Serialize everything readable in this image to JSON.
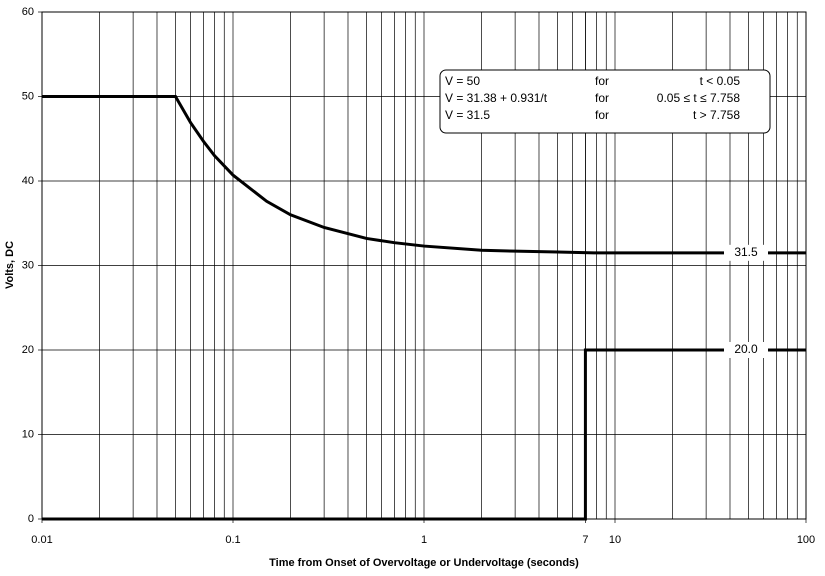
{
  "chart_data": {
    "type": "line",
    "x_label": "Time from Onset of Overvoltage or Undervoltage (seconds)",
    "y_label": "Volts, DC",
    "x_scale": "log",
    "xlim": [
      0.01,
      100
    ],
    "xticks": [
      0.01,
      0.1,
      1,
      7,
      10,
      100
    ],
    "xminorticks": [
      0.02,
      0.03,
      0.04,
      0.05,
      0.06,
      0.07,
      0.08,
      0.09,
      0.2,
      0.3,
      0.4,
      0.5,
      0.6,
      0.7,
      0.8,
      0.9,
      2,
      3,
      4,
      5,
      6,
      7,
      8,
      9,
      20,
      30,
      40,
      50,
      60,
      70,
      80,
      90
    ],
    "ylim": [
      0,
      60
    ],
    "yticks": [
      0,
      10,
      20,
      30,
      40,
      50,
      60
    ],
    "grid": true,
    "series": [
      {
        "color": "#000000",
        "x": [
          0.01,
          0.05,
          0.06,
          0.07,
          0.08,
          0.1,
          0.15,
          0.2,
          0.3,
          0.5,
          0.7,
          1,
          2,
          3,
          5,
          7.758,
          100
        ],
        "values": [
          50,
          50,
          46.9,
          44.7,
          43.0,
          40.7,
          37.6,
          36.0,
          34.5,
          33.2,
          32.7,
          32.3,
          31.8,
          31.7,
          31.6,
          31.5,
          31.5
        ],
        "value_labels": [
          null,
          null,
          null,
          null,
          null,
          null,
          null,
          null,
          null,
          null,
          null,
          null,
          null,
          null,
          null,
          null,
          "31.5"
        ]
      },
      {
        "color": "#000000",
        "x": [
          0.01,
          7,
          7,
          100
        ],
        "values": [
          0,
          0,
          20,
          20
        ],
        "value_labels": [
          null,
          null,
          null,
          "20.0"
        ]
      }
    ],
    "equation_box": [
      [
        "V = 50",
        "for",
        "t < 0.05"
      ],
      [
        "V = 31.38 + 0.931/t",
        "for",
        "0.05 ≤ t ≤ 7.758"
      ],
      [
        "V = 31.5",
        "for",
        "t > 7.758"
      ]
    ]
  }
}
